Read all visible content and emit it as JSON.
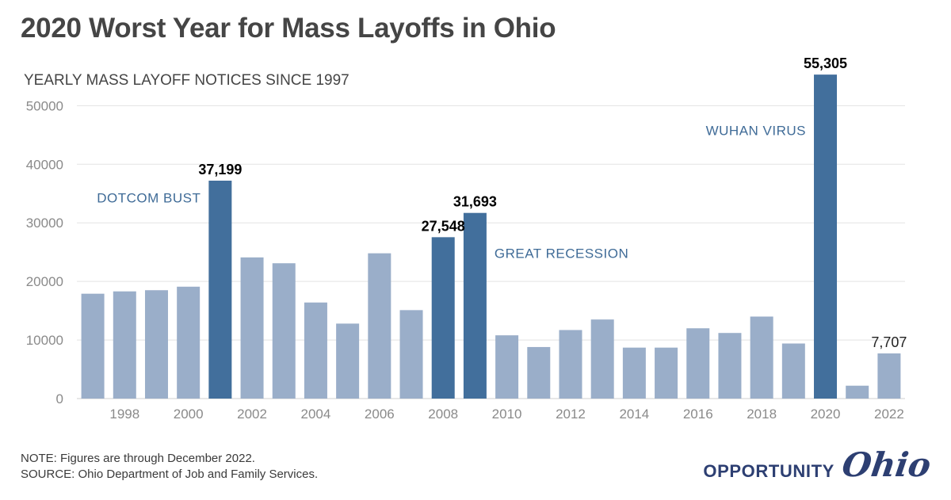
{
  "title": "2020 Worst Year for Mass Layoffs in Ohio",
  "footer": {
    "note": "NOTE: Figures are through December 2022.",
    "source": "SOURCE: Ohio Department of Job and Family Services."
  },
  "brand": {
    "word": "OPPORTUNITY",
    "script": "Ohio"
  },
  "colors": {
    "bar_default": "#9aaec9",
    "bar_highlight": "#426f9c",
    "annotation_text": "#3f6b97",
    "grid": "#e3e3e3",
    "axis_text": "#8a8a8a",
    "subtitle_text": "#454545"
  },
  "chart_data": {
    "type": "bar",
    "subtitle": "YEARLY MASS LAYOFF NOTICES SINCE 1997",
    "categories": [
      "1997",
      "1998",
      "1999",
      "2000",
      "2001",
      "2002",
      "2003",
      "2004",
      "2005",
      "2006",
      "2007",
      "2008",
      "2009",
      "2010",
      "2011",
      "2012",
      "2013",
      "2014",
      "2015",
      "2016",
      "2017",
      "2018",
      "2019",
      "2020",
      "2021",
      "2022"
    ],
    "values": [
      17900,
      18300,
      18500,
      19100,
      37199,
      24100,
      23100,
      16400,
      12800,
      24800,
      15100,
      27548,
      31693,
      10800,
      8800,
      11700,
      13500,
      8700,
      8700,
      12000,
      11200,
      14000,
      9400,
      55305,
      2200,
      7707
    ],
    "highlighted": [
      "2001",
      "2008",
      "2009",
      "2020"
    ],
    "x_tick_labels": [
      "1998",
      "2000",
      "2002",
      "2004",
      "2006",
      "2008",
      "2010",
      "2012",
      "2014",
      "2016",
      "2018",
      "2020",
      "2022"
    ],
    "y_ticks": [
      0,
      10000,
      20000,
      30000,
      40000,
      50000
    ],
    "ylim": [
      0,
      56000
    ],
    "grid": true,
    "data_labels": [
      {
        "category": "2001",
        "text": "37,199",
        "bold": true
      },
      {
        "category": "2008",
        "text": "27,548",
        "bold": true
      },
      {
        "category": "2009",
        "text": "31,693",
        "bold": true
      },
      {
        "category": "2020",
        "text": "55,305",
        "bold": true
      },
      {
        "category": "2022",
        "text": "7,707",
        "bold": false
      }
    ],
    "annotations": [
      {
        "text": "DOTCOM BUST",
        "category": "2001",
        "value": 33500,
        "anchor": "end"
      },
      {
        "text": "GREAT RECESSION",
        "category": "2009",
        "value": 24000,
        "anchor": "start"
      },
      {
        "text": "WUHAN VIRUS",
        "category": "2020",
        "value": 45000,
        "anchor": "end"
      }
    ]
  }
}
